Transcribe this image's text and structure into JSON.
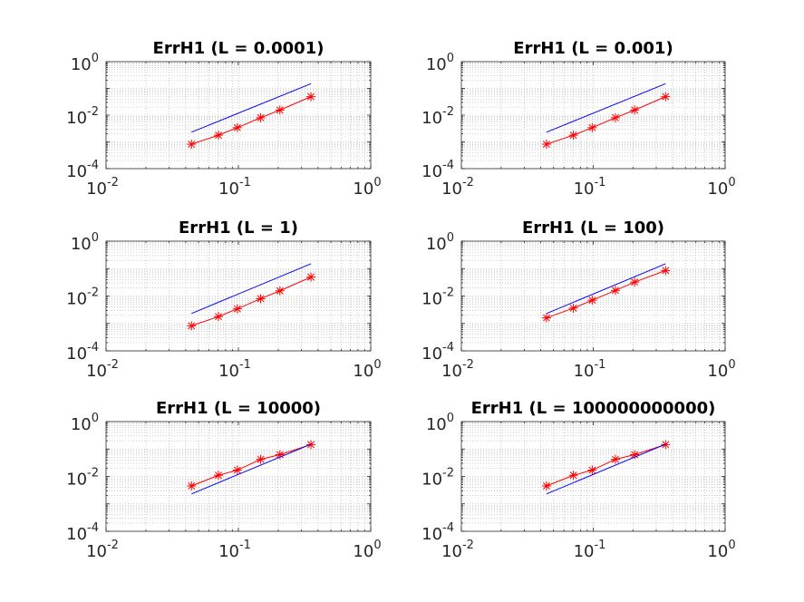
{
  "figure": {
    "background": "#ffffff",
    "grid": true,
    "grid_minor": true
  },
  "chart_data": [
    {
      "type": "line",
      "title": "ErrH1 (L = 0.0001)",
      "xscale": "log",
      "yscale": "log",
      "xlim": [
        0.01,
        1
      ],
      "ylim": [
        0.0001,
        1
      ],
      "xticks": [
        {
          "base": "10",
          "exp": "-2"
        },
        {
          "base": "10",
          "exp": "-1"
        },
        {
          "base": "10",
          "exp": "0"
        }
      ],
      "yticks": [
        {
          "base": "10",
          "exp": "-4"
        },
        {
          "base": "10",
          "exp": "-2"
        },
        {
          "base": "10",
          "exp": "0"
        }
      ],
      "series": [
        {
          "color": "#ff0000",
          "marker": "asterisk",
          "x": [
            0.0442,
            0.0707,
            0.0982,
            0.1473,
            0.2059,
            0.3536
          ],
          "y": [
            0.00082,
            0.00178,
            0.0034,
            0.008,
            0.0155,
            0.049
          ]
        },
        {
          "color": "#0000ff",
          "marker": "none",
          "x": [
            0.0442,
            0.3536
          ],
          "y": [
            0.0023,
            0.15
          ]
        }
      ]
    },
    {
      "type": "line",
      "title": "ErrH1 (L = 0.001)",
      "xscale": "log",
      "yscale": "log",
      "xlim": [
        0.01,
        1
      ],
      "ylim": [
        0.0001,
        1
      ],
      "xticks": [
        {
          "base": "10",
          "exp": "-2"
        },
        {
          "base": "10",
          "exp": "-1"
        },
        {
          "base": "10",
          "exp": "0"
        }
      ],
      "yticks": [
        {
          "base": "10",
          "exp": "-4"
        },
        {
          "base": "10",
          "exp": "-2"
        },
        {
          "base": "10",
          "exp": "0"
        }
      ],
      "series": [
        {
          "color": "#ff0000",
          "marker": "asterisk",
          "x": [
            0.0442,
            0.0707,
            0.0982,
            0.1473,
            0.2059,
            0.3536
          ],
          "y": [
            0.00082,
            0.00178,
            0.0034,
            0.008,
            0.0155,
            0.049
          ]
        },
        {
          "color": "#0000ff",
          "marker": "none",
          "x": [
            0.0442,
            0.3536
          ],
          "y": [
            0.0023,
            0.15
          ]
        }
      ]
    },
    {
      "type": "line",
      "title": "ErrH1 (L = 1)",
      "xscale": "log",
      "yscale": "log",
      "xlim": [
        0.01,
        1
      ],
      "ylim": [
        0.0001,
        1
      ],
      "xticks": [
        {
          "base": "10",
          "exp": "-2"
        },
        {
          "base": "10",
          "exp": "-1"
        },
        {
          "base": "10",
          "exp": "0"
        }
      ],
      "yticks": [
        {
          "base": "10",
          "exp": "-4"
        },
        {
          "base": "10",
          "exp": "-2"
        },
        {
          "base": "10",
          "exp": "0"
        }
      ],
      "series": [
        {
          "color": "#ff0000",
          "marker": "asterisk",
          "x": [
            0.0442,
            0.0707,
            0.0982,
            0.1473,
            0.2059,
            0.3536
          ],
          "y": [
            0.00082,
            0.00178,
            0.0034,
            0.008,
            0.0155,
            0.049
          ]
        },
        {
          "color": "#0000ff",
          "marker": "none",
          "x": [
            0.0442,
            0.3536
          ],
          "y": [
            0.0023,
            0.15
          ]
        }
      ]
    },
    {
      "type": "line",
      "title": "ErrH1 (L = 100)",
      "xscale": "log",
      "yscale": "log",
      "xlim": [
        0.01,
        1
      ],
      "ylim": [
        0.0001,
        1
      ],
      "xticks": [
        {
          "base": "10",
          "exp": "-2"
        },
        {
          "base": "10",
          "exp": "-1"
        },
        {
          "base": "10",
          "exp": "0"
        }
      ],
      "yticks": [
        {
          "base": "10",
          "exp": "-4"
        },
        {
          "base": "10",
          "exp": "-2"
        },
        {
          "base": "10",
          "exp": "0"
        }
      ],
      "series": [
        {
          "color": "#ff0000",
          "marker": "asterisk",
          "x": [
            0.0442,
            0.0707,
            0.0982,
            0.1473,
            0.2059,
            0.3536
          ],
          "y": [
            0.0016,
            0.0036,
            0.007,
            0.016,
            0.032,
            0.085
          ]
        },
        {
          "color": "#0000ff",
          "marker": "none",
          "x": [
            0.0442,
            0.3536
          ],
          "y": [
            0.0023,
            0.15
          ]
        }
      ]
    },
    {
      "type": "line",
      "title": "ErrH1 (L = 10000)",
      "xscale": "log",
      "yscale": "log",
      "xlim": [
        0.01,
        1
      ],
      "ylim": [
        0.0001,
        1
      ],
      "xticks": [
        {
          "base": "10",
          "exp": "-2"
        },
        {
          "base": "10",
          "exp": "-1"
        },
        {
          "base": "10",
          "exp": "0"
        }
      ],
      "yticks": [
        {
          "base": "10",
          "exp": "-4"
        },
        {
          "base": "10",
          "exp": "-2"
        },
        {
          "base": "10",
          "exp": "0"
        }
      ],
      "series": [
        {
          "color": "#ff0000",
          "marker": "asterisk",
          "x": [
            0.0442,
            0.0707,
            0.0982,
            0.1473,
            0.2059,
            0.3536
          ],
          "y": [
            0.0045,
            0.011,
            0.017,
            0.042,
            0.062,
            0.145
          ]
        },
        {
          "color": "#0000ff",
          "marker": "none",
          "x": [
            0.0442,
            0.3536
          ],
          "y": [
            0.0023,
            0.15
          ]
        }
      ]
    },
    {
      "type": "line",
      "title": "ErrH1 (L = 100000000000)",
      "xscale": "log",
      "yscale": "log",
      "xlim": [
        0.01,
        1
      ],
      "ylim": [
        0.0001,
        1
      ],
      "xticks": [
        {
          "base": "10",
          "exp": "-2"
        },
        {
          "base": "10",
          "exp": "-1"
        },
        {
          "base": "10",
          "exp": "0"
        }
      ],
      "yticks": [
        {
          "base": "10",
          "exp": "-4"
        },
        {
          "base": "10",
          "exp": "-2"
        },
        {
          "base": "10",
          "exp": "0"
        }
      ],
      "series": [
        {
          "color": "#ff0000",
          "marker": "asterisk",
          "x": [
            0.0442,
            0.0707,
            0.0982,
            0.1473,
            0.2059,
            0.3536
          ],
          "y": [
            0.0045,
            0.011,
            0.017,
            0.042,
            0.062,
            0.145
          ]
        },
        {
          "color": "#0000ff",
          "marker": "none",
          "x": [
            0.0442,
            0.3536
          ],
          "y": [
            0.0023,
            0.15
          ]
        }
      ]
    }
  ]
}
